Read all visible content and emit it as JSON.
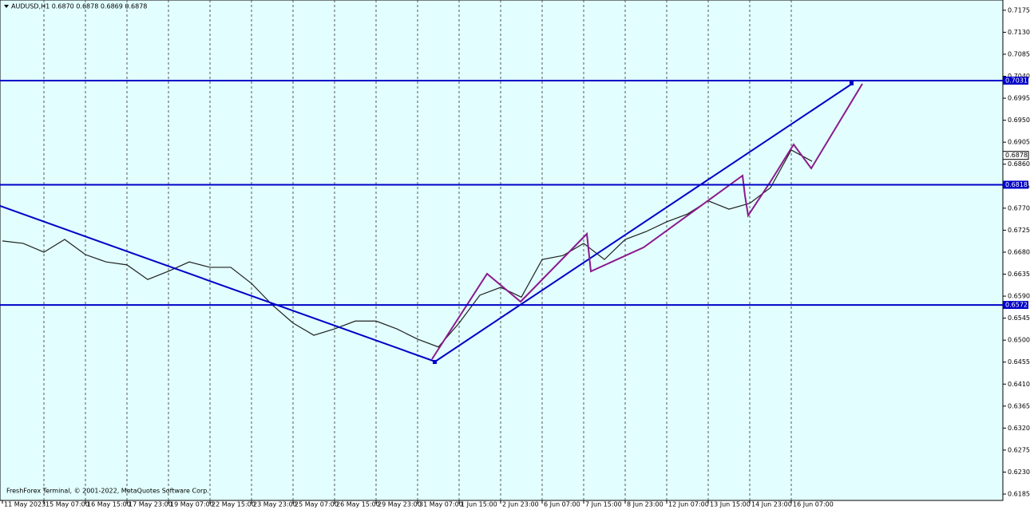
{
  "chart_data": {
    "type": "line",
    "title": "AUDUSD,H1  0.6870 0.6878 0.6869 0.6878",
    "footer": "FreshForex Terminal, © 2001-2022, MetaQuotes Software Corp.",
    "categories": [
      "11 May 2023",
      null,
      "15 May 07:00",
      null,
      "16 May 15:00",
      null,
      "17 May 23:00",
      null,
      "19 May 07:00",
      null,
      "22 May 15:00",
      null,
      "23 May 23:00",
      null,
      "25 May 07:00",
      null,
      "26 May 15:00",
      null,
      "29 May 23:00",
      null,
      "31 May 07:00",
      null,
      "1 Jun 15:00",
      null,
      "2 Jun 23:00",
      null,
      "6 Jun 07:00",
      null,
      "7 Jun 15:00",
      null,
      "8 Jun 23:00",
      null,
      "12 Jun 07:00",
      null,
      "13 Jun 15:00",
      null,
      "14 Jun 23:00",
      null,
      "16 Jun 07:00",
      null
    ],
    "values": [
      0.6703,
      0.6698,
      0.668,
      0.6706,
      0.6675,
      0.666,
      0.6654,
      0.6624,
      0.6641,
      0.666,
      0.6649,
      0.6649,
      0.6616,
      0.6572,
      0.6535,
      0.651,
      0.6523,
      0.6539,
      0.6539,
      0.6523,
      0.6502,
      0.6486,
      0.6535,
      0.6592,
      0.6608,
      0.6588,
      0.6665,
      0.6673,
      0.6698,
      0.6665,
      0.6706,
      0.6722,
      0.6742,
      0.6758,
      0.6785,
      0.6768,
      0.678,
      0.6812,
      0.6889,
      0.6866
    ],
    "color": "#202020",
    "ylim": [
      0.6172,
      0.7196
    ],
    "yticks": [
      0.7175,
      {
        "value": 0.713,
        "label": "0.7130"
      },
      0.7085,
      {
        "value": 0.704,
        "label": "0.7040"
      },
      0.6995,
      {
        "value": 0.695,
        "label": "0.6950"
      },
      0.6905,
      {
        "value": 0.686,
        "label": "0.6860"
      },
      0.6815,
      {
        "value": 0.677,
        "label": "0.6770"
      },
      0.6725,
      {
        "value": 0.668,
        "label": "0.6680"
      },
      0.6635,
      {
        "value": 0.659,
        "label": "0.6590"
      },
      0.6545,
      {
        "value": 0.65,
        "label": "0.6500"
      },
      0.6455,
      {
        "value": 0.641,
        "label": "0.6410"
      },
      0.6365,
      {
        "value": 0.632,
        "label": "0.6320"
      },
      0.6275,
      {
        "value": 0.623,
        "label": "0.6230"
      },
      0.6185
    ],
    "levels": [
      0.7031,
      0.6818,
      0.6572
    ],
    "level_color": "#0000c8",
    "last_price": 0.6878,
    "grid": true
  }
}
